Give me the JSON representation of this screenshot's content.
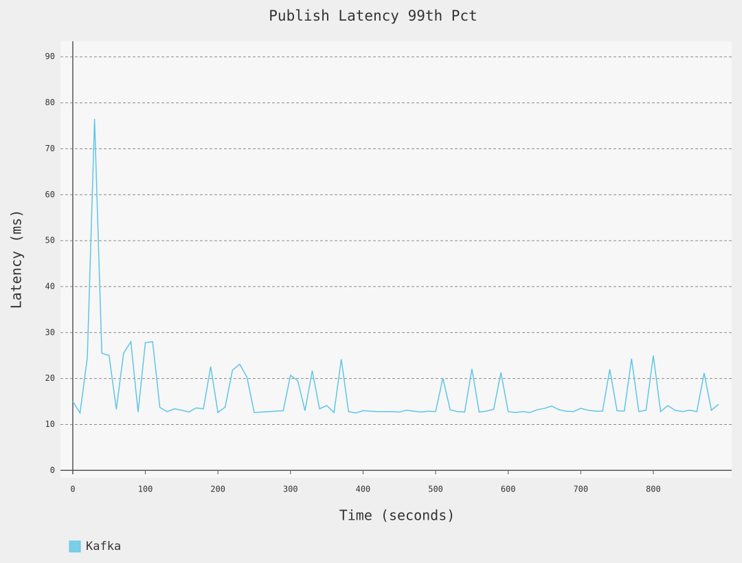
{
  "chart_data": {
    "type": "line",
    "title": "Publish Latency 99th Pct",
    "x_label": "Time (seconds)",
    "y_label": "Latency (ms)",
    "x": [
      0,
      10,
      20,
      30,
      40,
      50,
      60,
      70,
      80,
      90,
      100,
      110,
      120,
      130,
      140,
      150,
      160,
      170,
      180,
      190,
      200,
      210,
      220,
      230,
      240,
      250,
      260,
      270,
      280,
      290,
      300,
      310,
      320,
      330,
      340,
      350,
      360,
      370,
      380,
      390,
      400,
      410,
      420,
      430,
      440,
      450,
      460,
      470,
      480,
      490,
      500,
      510,
      520,
      530,
      540,
      550,
      560,
      570,
      580,
      590,
      600,
      610,
      620,
      630,
      640,
      650,
      660,
      670,
      680,
      690,
      700,
      710,
      720,
      730,
      740,
      750,
      760,
      770,
      780,
      790,
      800,
      810,
      820,
      830,
      840,
      850,
      860,
      870,
      880,
      890
    ],
    "series": [
      {
        "name": "Kafka",
        "color": "#5cc6e6",
        "values": [
          15,
          12.5,
          24.5,
          76.5,
          25.5,
          25,
          13.3,
          25.5,
          28,
          12.7,
          27.8,
          28,
          13.7,
          12.8,
          13.4,
          13.1,
          12.7,
          13.6,
          13.4,
          22.6,
          12.6,
          13.8,
          21.8,
          23.1,
          20.3,
          12.6,
          12.7,
          12.8,
          12.9,
          13,
          20.7,
          19.5,
          13,
          21.7,
          13.4,
          14.1,
          12.6,
          24.2,
          12.8,
          12.5,
          13,
          12.9,
          12.8,
          12.8,
          12.8,
          12.7,
          13.1,
          12.9,
          12.7,
          12.9,
          12.8,
          20.1,
          13.2,
          12.8,
          12.7,
          22.1,
          12.7,
          12.9,
          13.3,
          21.3,
          12.8,
          12.6,
          12.8,
          12.6,
          13.2,
          13.5,
          14,
          13.2,
          12.9,
          12.8,
          13.5,
          13.1,
          12.9,
          12.9,
          22,
          13,
          12.9,
          24.3,
          12.8,
          13.1,
          25,
          12.8,
          14.1,
          13.1,
          12.8,
          13.1,
          12.8,
          21.2,
          13.1,
          14.4
        ]
      }
    ],
    "xlim": [
      -17,
      908
    ],
    "ylim": [
      -1.6,
      93.4
    ],
    "xticks": [
      0,
      100,
      200,
      300,
      400,
      500,
      600,
      700,
      800
    ],
    "yticks": [
      0,
      10,
      20,
      30,
      40,
      50,
      60,
      70,
      80,
      90
    ],
    "grid": true
  }
}
